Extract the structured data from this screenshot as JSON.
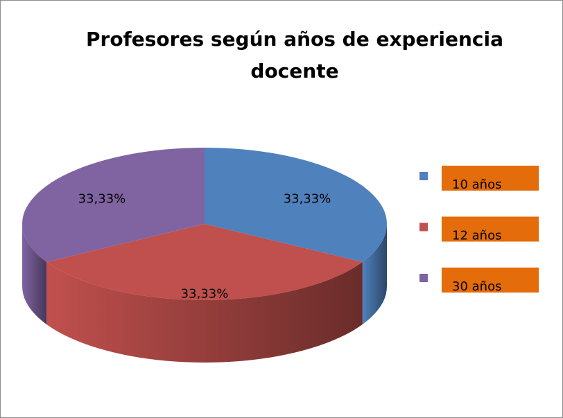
{
  "chart_data": {
    "type": "pie3d",
    "title": "Profesores según años de experiencia docente",
    "categories": [
      "10 años",
      "12 años",
      "30 años"
    ],
    "values": [
      33.33,
      33.33,
      33.33
    ],
    "value_labels": [
      "33,33%",
      "33,33%",
      "33,33%"
    ],
    "colors": [
      "#4f81bd",
      "#c0504d",
      "#8064a2"
    ],
    "legend": "right"
  }
}
